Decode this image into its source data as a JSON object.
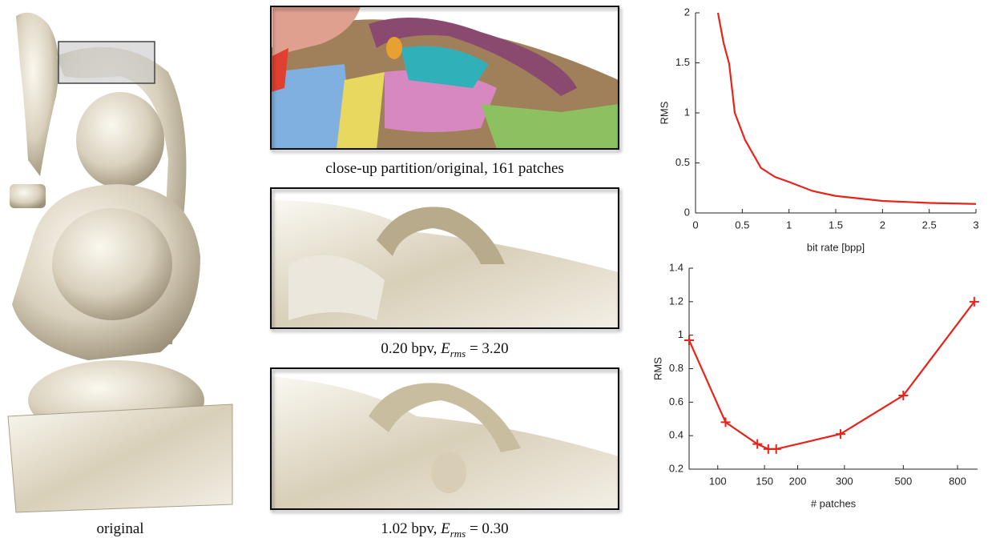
{
  "captions": {
    "original": "original",
    "partition": "close-up partition/original, 161 patches",
    "low": {
      "text": "0.20 bpv, ",
      "symbol": "E",
      "subscript": "rms",
      "relation": " = 3.20"
    },
    "high": {
      "text": "1.02 bpv, ",
      "symbol": "E",
      "subscript": "rms",
      "relation": " = 0.30"
    }
  },
  "chart_data": [
    {
      "type": "line",
      "xlabel": "bit rate [bpp]",
      "ylabel": "RMS",
      "color": "#e8231a",
      "x": [
        0.24,
        0.3,
        0.36,
        0.42,
        0.53,
        0.7,
        0.85,
        1.0,
        1.25,
        1.5,
        2.0,
        2.5,
        3.0
      ],
      "values": [
        2.0,
        1.7,
        1.49,
        1.0,
        0.73,
        0.45,
        0.36,
        0.31,
        0.22,
        0.17,
        0.12,
        0.1,
        0.09
      ],
      "xlim": [
        0,
        3
      ],
      "ylim": [
        0,
        2
      ],
      "xticks": [
        0,
        0.5,
        1,
        1.5,
        2,
        2.5,
        3
      ],
      "yticks": [
        0,
        0.5,
        1,
        1.5,
        2
      ]
    },
    {
      "type": "line",
      "xlabel": "# patches",
      "ylabel": "RMS",
      "color": "#e8231a",
      "xscale": "log",
      "markers": true,
      "x": [
        78,
        107,
        141,
        155,
        166,
        290,
        500,
        925
      ],
      "values": [
        0.97,
        0.48,
        0.35,
        0.32,
        0.32,
        0.41,
        0.64,
        1.2
      ],
      "xlim": [
        78,
        952
      ],
      "ylim": [
        0.2,
        1.4
      ],
      "xticks": [
        100,
        150,
        200,
        300,
        500,
        800
      ],
      "yticks": [
        0.2,
        0.4,
        0.6,
        0.8,
        1,
        1.2,
        1.4
      ]
    }
  ]
}
